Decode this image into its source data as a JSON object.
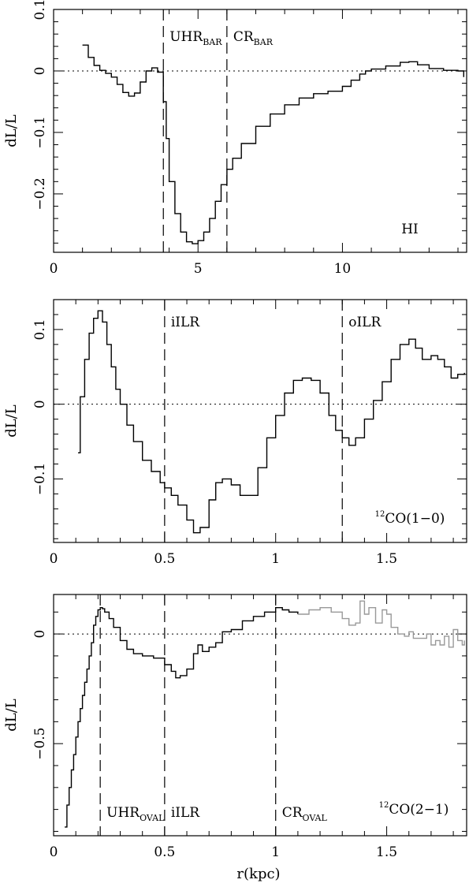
{
  "figure": {
    "x_axis_label": "r(kpc)"
  },
  "chart_data": [
    {
      "type": "line",
      "step": true,
      "ylabel": "dL/L",
      "xlim": [
        0,
        14.3
      ],
      "ylim": [
        -0.295,
        0.1
      ],
      "xticks": [
        0,
        5,
        10
      ],
      "xtick_labels": [
        "0",
        "5",
        "10"
      ],
      "yticks": [
        0.1,
        0,
        -0.1,
        -0.2
      ],
      "ytick_labels": [
        "0.1",
        "0",
        "−0.1",
        "−0.2"
      ],
      "zero_line": true,
      "series": [
        {
          "color": "#000000",
          "x": [
            1.0,
            1.2,
            1.4,
            1.6,
            1.8,
            2.0,
            2.2,
            2.4,
            2.6,
            2.8,
            3.0,
            3.2,
            3.4,
            3.6,
            3.8,
            3.9,
            4.0,
            4.2,
            4.4,
            4.6,
            4.8,
            5.0,
            5.2,
            5.4,
            5.6,
            5.8,
            6.0,
            6.2,
            6.5,
            7.0,
            7.5,
            8.0,
            8.5,
            9.0,
            9.5,
            10.0,
            10.3,
            10.6,
            10.8,
            11.0,
            11.5,
            12.0,
            12.3,
            12.6,
            13.0,
            13.5,
            14.0,
            14.2
          ],
          "y": [
            0.042,
            0.022,
            0.009,
            0.001,
            -0.004,
            -0.01,
            -0.022,
            -0.035,
            -0.041,
            -0.036,
            -0.018,
            0.0,
            0.005,
            -0.002,
            -0.05,
            -0.11,
            -0.18,
            -0.232,
            -0.262,
            -0.278,
            -0.281,
            -0.276,
            -0.262,
            -0.24,
            -0.212,
            -0.185,
            -0.16,
            -0.142,
            -0.118,
            -0.09,
            -0.07,
            -0.055,
            -0.044,
            -0.037,
            -0.033,
            -0.025,
            -0.015,
            -0.005,
            0.0,
            0.003,
            0.008,
            0.014,
            0.015,
            0.01,
            0.004,
            0.001,
            0.0,
            -0.01
          ]
        }
      ],
      "vlines": [
        {
          "x": 3.8,
          "label": "UHR",
          "label_sub": "BAR"
        },
        {
          "x": 6.0,
          "label": "CR",
          "label_sub": "BAR"
        }
      ],
      "annotations": [
        {
          "text": "HI"
        }
      ]
    },
    {
      "type": "line",
      "step": true,
      "ylabel": "dL/L",
      "xlim": [
        0,
        1.86
      ],
      "ylim": [
        -0.185,
        0.14
      ],
      "xticks": [
        0,
        0.5,
        1,
        1.5
      ],
      "xtick_labels": [
        "0",
        "0.5",
        "1",
        "1.5"
      ],
      "yticks": [
        0.1,
        0,
        -0.1
      ],
      "ytick_labels": [
        "0.1",
        "0",
        "−0.1"
      ],
      "zero_line": true,
      "series": [
        {
          "color": "#000000",
          "x": [
            0.11,
            0.12,
            0.14,
            0.16,
            0.18,
            0.2,
            0.22,
            0.24,
            0.26,
            0.28,
            0.3,
            0.33,
            0.36,
            0.4,
            0.44,
            0.48,
            0.5,
            0.53,
            0.56,
            0.6,
            0.63,
            0.66,
            0.7,
            0.73,
            0.76,
            0.8,
            0.84,
            0.88,
            0.92,
            0.96,
            1.0,
            1.04,
            1.08,
            1.12,
            1.16,
            1.2,
            1.24,
            1.27,
            1.3,
            1.33,
            1.36,
            1.4,
            1.44,
            1.48,
            1.52,
            1.56,
            1.6,
            1.63,
            1.66,
            1.7,
            1.73,
            1.76,
            1.79,
            1.82,
            1.85
          ],
          "y": [
            -0.065,
            0.01,
            0.06,
            0.095,
            0.115,
            0.125,
            0.11,
            0.08,
            0.05,
            0.02,
            0.0,
            -0.028,
            -0.05,
            -0.075,
            -0.09,
            -0.105,
            -0.112,
            -0.122,
            -0.135,
            -0.155,
            -0.172,
            -0.165,
            -0.128,
            -0.105,
            -0.1,
            -0.108,
            -0.122,
            -0.122,
            -0.085,
            -0.045,
            -0.015,
            0.015,
            0.032,
            0.035,
            0.032,
            0.015,
            -0.015,
            -0.035,
            -0.045,
            -0.055,
            -0.045,
            -0.02,
            0.005,
            0.03,
            0.06,
            0.08,
            0.087,
            0.075,
            0.06,
            0.065,
            0.06,
            0.05,
            0.035,
            0.04,
            0.042
          ]
        }
      ],
      "vlines": [
        {
          "x": 0.5,
          "label": "iILR",
          "label_sub": ""
        },
        {
          "x": 1.3,
          "label": "oILR",
          "label_sub": ""
        }
      ],
      "annotations": [
        {
          "text_sup": "12",
          "text": "CO(1−0)"
        }
      ]
    },
    {
      "type": "line",
      "step": true,
      "ylabel": "dL/L",
      "xlim": [
        0,
        1.86
      ],
      "ylim": [
        -0.92,
        0.18
      ],
      "xticks": [
        0,
        0.5,
        1,
        1.5
      ],
      "xtick_labels": [
        "0",
        "0.5",
        "1",
        "1.5"
      ],
      "yticks": [
        0,
        -0.5
      ],
      "ytick_labels": [
        "0",
        "−0.5"
      ],
      "zero_line": true,
      "x_axis_label_shown": true,
      "series": [
        {
          "color": "#000000",
          "x": [
            0.05,
            0.06,
            0.07,
            0.08,
            0.09,
            0.1,
            0.11,
            0.12,
            0.13,
            0.14,
            0.15,
            0.16,
            0.17,
            0.18,
            0.19,
            0.2,
            0.21,
            0.22,
            0.23,
            0.25,
            0.27,
            0.3,
            0.33,
            0.36,
            0.4,
            0.45,
            0.5,
            0.53,
            0.55,
            0.57,
            0.6,
            0.63,
            0.65,
            0.67,
            0.7,
            0.73,
            0.76,
            0.8,
            0.85,
            0.9,
            0.95,
            1.0,
            1.03,
            1.06,
            1.1
          ],
          "y": [
            -0.88,
            -0.78,
            -0.7,
            -0.62,
            -0.55,
            -0.47,
            -0.4,
            -0.34,
            -0.28,
            -0.22,
            -0.16,
            -0.1,
            -0.04,
            0.04,
            0.08,
            0.11,
            0.12,
            0.115,
            0.1,
            0.07,
            0.03,
            -0.03,
            -0.07,
            -0.09,
            -0.1,
            -0.11,
            -0.14,
            -0.17,
            -0.2,
            -0.19,
            -0.16,
            -0.09,
            -0.05,
            -0.08,
            -0.06,
            -0.04,
            0.01,
            0.02,
            0.06,
            0.08,
            0.1,
            0.12,
            0.11,
            0.1,
            0.09
          ]
        },
        {
          "color": "#999999",
          "x": [
            1.1,
            1.15,
            1.2,
            1.25,
            1.3,
            1.33,
            1.36,
            1.38,
            1.4,
            1.42,
            1.45,
            1.48,
            1.5,
            1.52,
            1.55,
            1.58,
            1.6,
            1.62,
            1.65,
            1.68,
            1.7,
            1.72,
            1.74,
            1.76,
            1.78,
            1.8,
            1.82,
            1.84,
            1.85
          ],
          "y": [
            0.09,
            0.11,
            0.12,
            0.1,
            0.07,
            0.04,
            0.05,
            0.15,
            0.09,
            0.12,
            0.05,
            0.11,
            0.09,
            0.03,
            0.0,
            -0.01,
            0.01,
            -0.02,
            -0.02,
            0.0,
            -0.05,
            -0.03,
            -0.05,
            -0.01,
            -0.06,
            0.02,
            -0.03,
            -0.05,
            -0.03
          ]
        }
      ],
      "vlines": [
        {
          "x": 0.21,
          "label": "UHR",
          "label_sub": "OVAL"
        },
        {
          "x": 0.5,
          "label": "iILR",
          "label_sub": ""
        },
        {
          "x": 1.0,
          "label": "CR",
          "label_sub": "OVAL"
        }
      ],
      "annotations": [
        {
          "text_sup": "12",
          "text": "CO(2−1)"
        }
      ]
    }
  ]
}
